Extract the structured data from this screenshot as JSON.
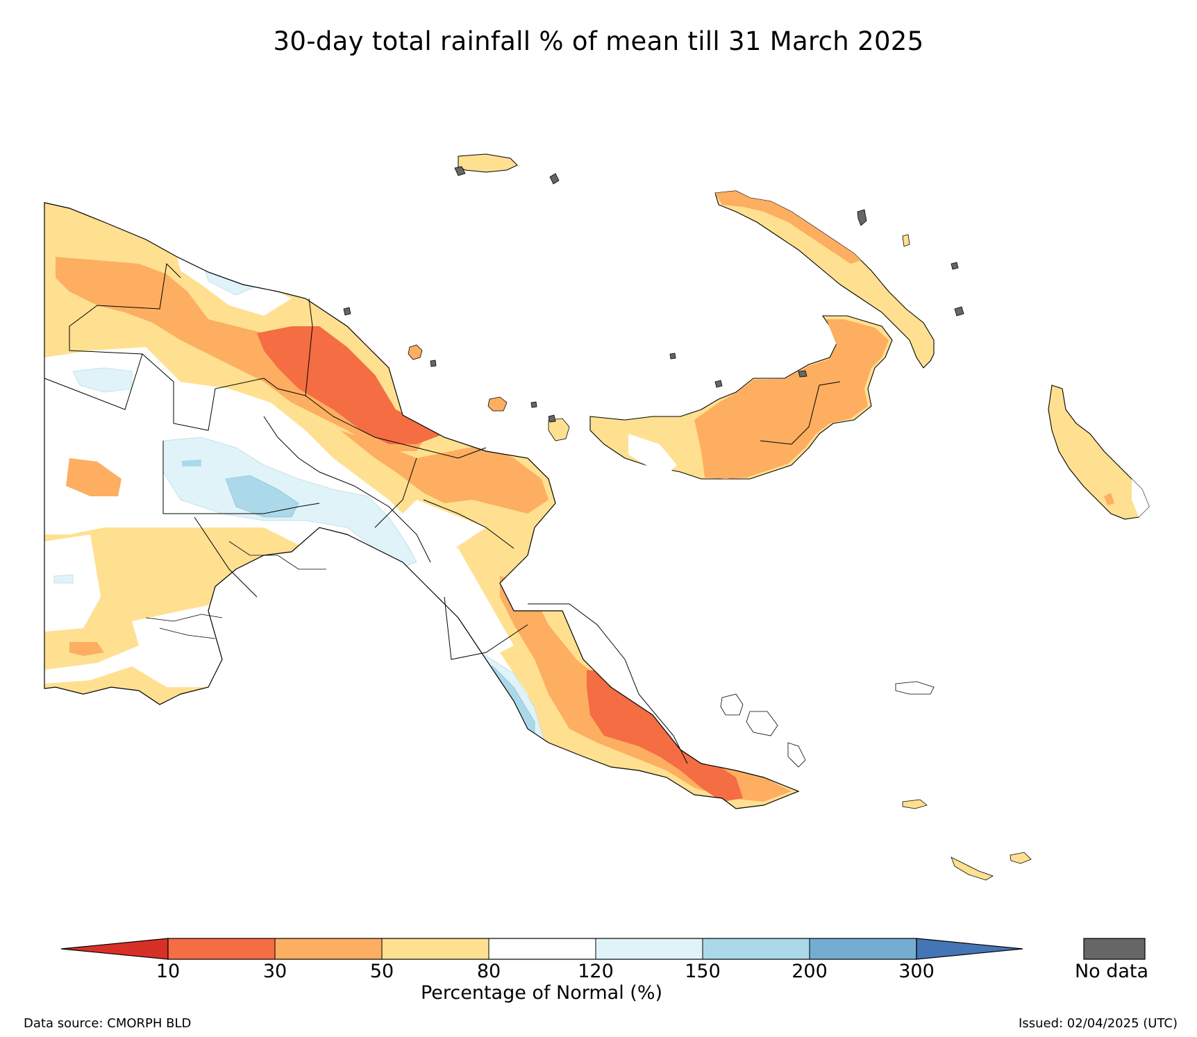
{
  "title": "30-day total rainfall % of mean till 31 March 2025",
  "legend": {
    "ticks": [
      "10",
      "30",
      "50",
      "80",
      "120",
      "150",
      "200",
      "300"
    ],
    "axis_label": "Percentage of Normal (%)",
    "under_color": "#d73027",
    "over_color": "#4575b4",
    "bins": [
      {
        "range": "10-30",
        "color": "#f46d43"
      },
      {
        "range": "30-50",
        "color": "#fdae61"
      },
      {
        "range": "50-80",
        "color": "#fee090"
      },
      {
        "range": "80-120",
        "color": "#ffffff"
      },
      {
        "range": "120-150",
        "color": "#e0f3f8"
      },
      {
        "range": "150-200",
        "color": "#abd9e9"
      },
      {
        "range": "200-300",
        "color": "#74add1"
      }
    ],
    "no_data": {
      "label": "No data",
      "color": "#666666"
    }
  },
  "footer": {
    "source": "Data source: CMORPH BLD",
    "issued": "Issued: 02/04/2025 (UTC)"
  }
}
